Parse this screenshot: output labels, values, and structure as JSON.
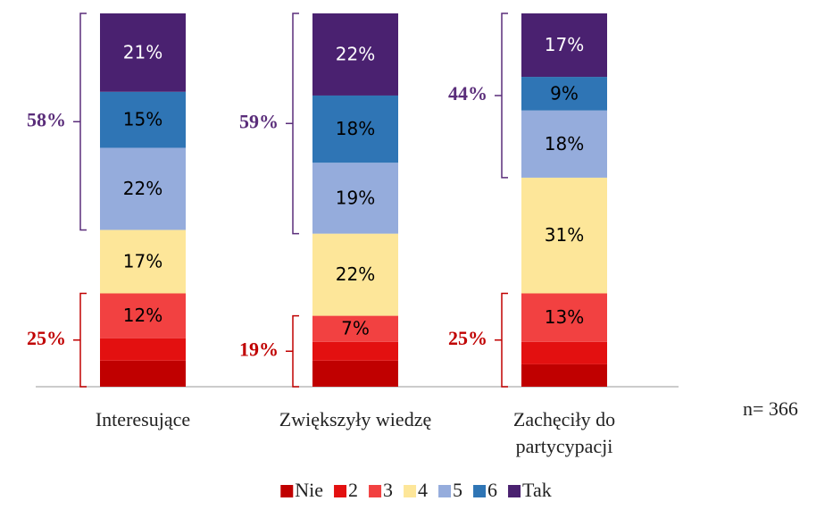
{
  "chart_data": {
    "type": "stacked_bar",
    "categories": [
      "Interesujące",
      "Zwiększyły wiedzę",
      "Zachęciły do partycypacji"
    ],
    "series": [
      {
        "name": "Nie",
        "color": "#c00000",
        "values": [
          7,
          7,
          6
        ],
        "value_labels": [
          null,
          null,
          null
        ]
      },
      {
        "name": "2",
        "color": "#e31010",
        "values": [
          6,
          5,
          6
        ],
        "value_labels": [
          null,
          null,
          null
        ]
      },
      {
        "name": "3",
        "color": "#f24141",
        "values": [
          12,
          7,
          13
        ],
        "value_labels": [
          "12%",
          "7%",
          "13%"
        ]
      },
      {
        "name": "4",
        "color": "#fde699",
        "values": [
          17,
          22,
          31
        ],
        "value_labels": [
          "17%",
          "22%",
          "31%"
        ]
      },
      {
        "name": "5",
        "color": "#95acdc",
        "values": [
          22,
          19,
          18
        ],
        "value_labels": [
          "22%",
          "19%",
          "18%"
        ]
      },
      {
        "name": "6",
        "color": "#2f75b5",
        "values": [
          15,
          18,
          9
        ],
        "value_labels": [
          "15%",
          "18%",
          "9%"
        ]
      },
      {
        "name": "Tak",
        "color": "#4a2170",
        "values": [
          21,
          22,
          17
        ],
        "value_labels": [
          "21%",
          "22%",
          "17%"
        ]
      }
    ],
    "top_box": {
      "color": "#5a2d7a",
      "values": [
        58,
        59,
        44
      ],
      "value_labels": [
        "58%",
        "59%",
        "44%"
      ]
    },
    "bottom_box": {
      "color": "#c00000",
      "values": [
        25,
        19,
        25
      ],
      "value_labels": [
        "25%",
        "19%",
        "25%"
      ]
    },
    "annotation": "n= 366",
    "ylim": [
      0,
      100
    ]
  }
}
